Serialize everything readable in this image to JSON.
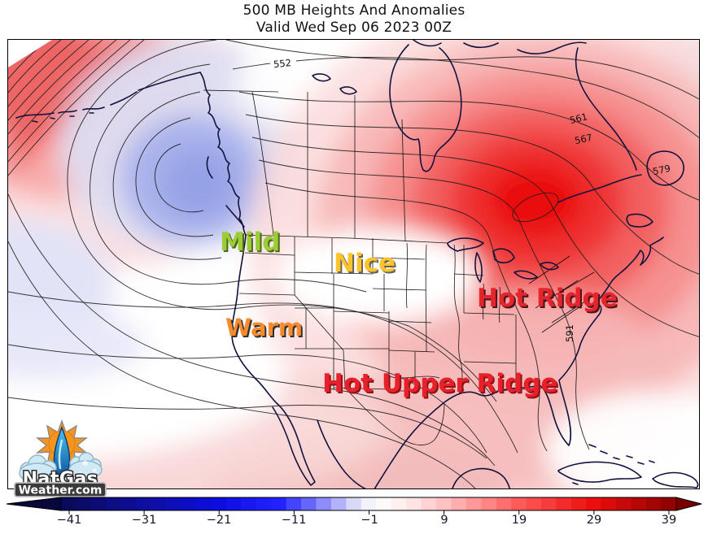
{
  "title": {
    "line1": "500 MB Heights And Anomalies",
    "line2": "Valid Wed Sep 06 2023 00Z"
  },
  "map": {
    "annotations": [
      {
        "label": "Mild",
        "color": "#9bcd36",
        "shadow": "#4d661b"
      },
      {
        "label": "Nice",
        "color": "#fdc32f",
        "shadow": "#6b6253"
      },
      {
        "label": "Warm",
        "color": "#f68b2e",
        "shadow": "#303030"
      },
      {
        "label": "Hot Ridge",
        "color": "#e5242b",
        "shadow": "#46161d"
      },
      {
        "label": "Hot Upper Ridge",
        "color": "#e8202a",
        "shadow": "#8f1218"
      }
    ],
    "contour_labels": [
      {
        "text": "552"
      },
      {
        "text": "561"
      },
      {
        "text": "567"
      },
      {
        "text": "579"
      },
      {
        "text": "591"
      }
    ],
    "anomaly_colors": {
      "strong_positive": "#ea0c0c",
      "moderate_positive": "#f36060",
      "weak_positive": "#f7cccc",
      "weak_negative": "#dcdff5",
      "moderate_negative": "#96a2e6"
    }
  },
  "logo": {
    "name": "NatGas",
    "domain": "Weather.com"
  },
  "colorbar": {
    "ticks": [
      "−41",
      "−31",
      "−21",
      "−11",
      "−1",
      "9",
      "19",
      "29",
      "39"
    ],
    "range": [
      -42,
      40
    ],
    "step": 2,
    "stops": [
      {
        "v": -42,
        "c": "#0a0a55"
      },
      {
        "v": -31,
        "c": "#0e0ea0"
      },
      {
        "v": -21,
        "c": "#0d0de0"
      },
      {
        "v": -13,
        "c": "#2222ff"
      },
      {
        "v": -9,
        "c": "#6666ff"
      },
      {
        "v": -3,
        "c": "#d8d8f8"
      },
      {
        "v": 0,
        "c": "#ffffff"
      },
      {
        "v": 5,
        "c": "#ffe4e4"
      },
      {
        "v": 9,
        "c": "#ffc2c2"
      },
      {
        "v": 19,
        "c": "#ff5a5a"
      },
      {
        "v": 29,
        "c": "#ea0e0e"
      },
      {
        "v": 40,
        "c": "#8b0000"
      }
    ],
    "arrow_left_color": "#08083c",
    "arrow_right_color": "#7a0000"
  }
}
